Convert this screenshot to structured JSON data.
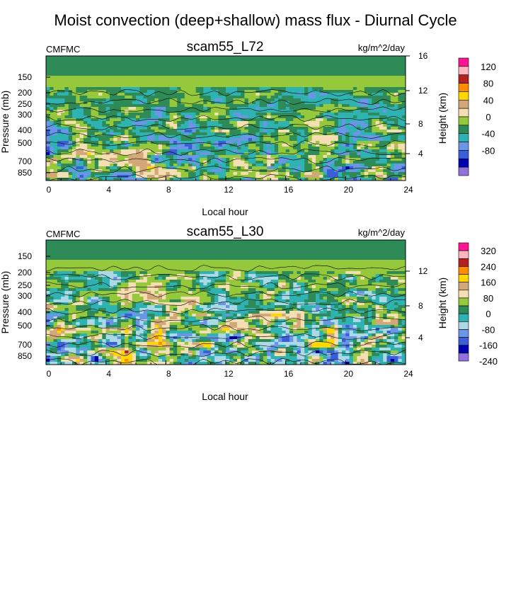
{
  "figure": {
    "title": "Moist convection (deep+shallow) mass flux - Diurnal Cycle"
  },
  "chart_data": [
    {
      "type": "heatmap",
      "title": "scam55_L72",
      "left_label": "CMFMC",
      "units": "kg/m^2/day",
      "xlabel": "Local hour",
      "ylabel": "Pressure (mb)",
      "ylabel_right": "Height (km)",
      "xticks": [
        "0",
        "4",
        "8",
        "12",
        "16",
        "20",
        "24"
      ],
      "xlim": [
        0,
        24
      ],
      "yticks_pressure": [
        "150",
        "200",
        "250",
        "300",
        "400",
        "500",
        "700",
        "850"
      ],
      "yticks_pressure_values": [
        150,
        200,
        250,
        300,
        400,
        500,
        700,
        850
      ],
      "yticks_height": [
        "16",
        "12",
        "8",
        "4"
      ],
      "yticks_height_values": [
        16,
        12,
        8,
        4
      ],
      "color_levels": [
        "-80",
        "-40",
        "0",
        "40",
        "80",
        "120"
      ],
      "colorbar_colors": [
        "#9370db",
        "#0000b0",
        "#3a5fd9",
        "#6b96e8",
        "#2eb2b2",
        "#2e8b57",
        "#96c83c",
        "#f5deb3",
        "#d2a878",
        "#ffd700",
        "#ff8c00",
        "#b22222",
        "#ffb6c1",
        "#ff1493"
      ]
    },
    {
      "type": "heatmap",
      "title": "scam55_L30",
      "left_label": "CMFMC",
      "units": "kg/m^2/day",
      "xlabel": "Local hour",
      "ylabel": "Pressure (mb)",
      "ylabel_right": "Height (km)",
      "xticks": [
        "0",
        "4",
        "8",
        "12",
        "16",
        "20",
        "24"
      ],
      "xlim": [
        0,
        24
      ],
      "yticks_pressure": [
        "150",
        "200",
        "250",
        "300",
        "400",
        "500",
        "700",
        "850"
      ],
      "yticks_pressure_values": [
        150,
        200,
        250,
        300,
        400,
        500,
        700,
        850
      ],
      "yticks_height": [
        "12",
        "8",
        "4"
      ],
      "yticks_height_values": [
        12,
        8,
        4
      ],
      "color_levels": [
        "-240",
        "-160",
        "-80",
        "0",
        "80",
        "160",
        "240",
        "320"
      ],
      "colorbar_colors": [
        "#9370db",
        "#0000b0",
        "#3a5fd9",
        "#6b96e8",
        "#add8e6",
        "#2eb2b2",
        "#2e8b57",
        "#96c83c",
        "#f5deb3",
        "#d2a878",
        "#ffd700",
        "#ff8c00",
        "#b22222",
        "#ffb6c1",
        "#ff1493"
      ]
    }
  ]
}
